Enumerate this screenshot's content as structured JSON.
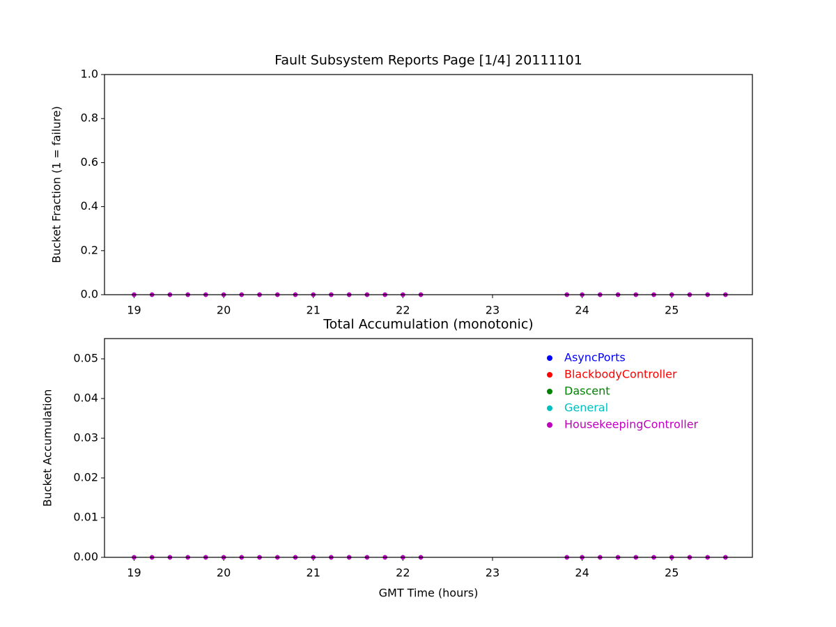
{
  "chart_data": [
    {
      "type": "scatter",
      "title": "Fault Subsystem Reports Page [1/4] 20111101",
      "y_label": "Bucket Fraction (1 = failure)",
      "x": [
        19.0,
        19.2,
        19.4,
        19.6,
        19.8,
        20.0,
        20.2,
        20.4,
        20.6,
        20.8,
        21.0,
        21.2,
        21.4,
        21.6,
        21.8,
        22.0,
        22.2,
        23.83,
        24.0,
        24.2,
        24.4,
        24.6,
        24.8,
        25.0,
        25.2,
        25.4,
        25.6
      ],
      "series": [
        {
          "color": "#0000ff",
          "values": [
            0,
            0,
            0,
            0,
            0,
            0,
            0,
            0,
            0,
            0,
            0,
            0,
            0,
            0,
            0,
            0,
            0,
            0,
            0,
            0,
            0,
            0,
            0,
            0,
            0,
            0,
            0
          ]
        },
        {
          "color": "#ff0000",
          "values": [
            0,
            0,
            0,
            0,
            0,
            0,
            0,
            0,
            0,
            0,
            0,
            0,
            0,
            0,
            0,
            0,
            0,
            0,
            0,
            0,
            0,
            0,
            0,
            0,
            0,
            0,
            0
          ]
        },
        {
          "color": "#008000",
          "values": [
            0,
            0,
            0,
            0,
            0,
            0,
            0,
            0,
            0,
            0,
            0,
            0,
            0,
            0,
            0,
            0,
            0,
            0,
            0,
            0,
            0,
            0,
            0,
            0,
            0,
            0,
            0
          ]
        },
        {
          "color": "#00bfbf",
          "values": [
            0,
            0,
            0,
            0,
            0,
            0,
            0,
            0,
            0,
            0,
            0,
            0,
            0,
            0,
            0,
            0,
            0,
            0,
            0,
            0,
            0,
            0,
            0,
            0,
            0,
            0,
            0
          ]
        },
        {
          "color": "#bf00bf",
          "values": [
            0,
            0,
            0,
            0,
            0,
            0,
            0,
            0,
            0,
            0,
            0,
            0,
            0,
            0,
            0,
            0,
            0,
            0,
            0,
            0,
            0,
            0,
            0,
            0,
            0,
            0,
            0
          ]
        }
      ],
      "xlim": [
        18.67,
        25.9
      ],
      "xticks": [
        19,
        20,
        21,
        22,
        23,
        24,
        25
      ],
      "ylim": [
        0,
        1
      ],
      "yticks": [
        {
          "value": 0,
          "label": "0.0"
        },
        0.2,
        0.4,
        0.6,
        0.8,
        {
          "value": 1,
          "label": "1.0"
        }
      ]
    },
    {
      "type": "scatter",
      "title": "Total Accumulation (monotonic)",
      "x_label": "GMT Time (hours)",
      "y_label": "Bucket Accumulation",
      "x": [
        19.0,
        19.2,
        19.4,
        19.6,
        19.8,
        20.0,
        20.2,
        20.4,
        20.6,
        20.8,
        21.0,
        21.2,
        21.4,
        21.6,
        21.8,
        22.0,
        22.2,
        23.83,
        24.0,
        24.2,
        24.4,
        24.6,
        24.8,
        25.0,
        25.2,
        25.4,
        25.6
      ],
      "series": [
        {
          "name": "AsyncPorts",
          "color": "#0000ff",
          "values": [
            0,
            0,
            0,
            0,
            0,
            0,
            0,
            0,
            0,
            0,
            0,
            0,
            0,
            0,
            0,
            0,
            0,
            0,
            0,
            0,
            0,
            0,
            0,
            0,
            0,
            0,
            0
          ]
        },
        {
          "name": "BlackbodyController",
          "color": "#ff0000",
          "values": [
            0,
            0,
            0,
            0,
            0,
            0,
            0,
            0,
            0,
            0,
            0,
            0,
            0,
            0,
            0,
            0,
            0,
            0,
            0,
            0,
            0,
            0,
            0,
            0,
            0,
            0,
            0
          ]
        },
        {
          "name": "Dascent",
          "color": "#008000",
          "values": [
            0,
            0,
            0,
            0,
            0,
            0,
            0,
            0,
            0,
            0,
            0,
            0,
            0,
            0,
            0,
            0,
            0,
            0,
            0,
            0,
            0,
            0,
            0,
            0,
            0,
            0,
            0
          ]
        },
        {
          "name": "General",
          "color": "#00bfbf",
          "values": [
            0,
            0,
            0,
            0,
            0,
            0,
            0,
            0,
            0,
            0,
            0,
            0,
            0,
            0,
            0,
            0,
            0,
            0,
            0,
            0,
            0,
            0,
            0,
            0,
            0,
            0,
            0
          ]
        },
        {
          "name": "HousekeepingController",
          "color": "#bf00bf",
          "values": [
            0,
            0,
            0,
            0,
            0,
            0,
            0,
            0,
            0,
            0,
            0,
            0,
            0,
            0,
            0,
            0,
            0,
            0,
            0,
            0,
            0,
            0,
            0,
            0,
            0,
            0,
            0
          ]
        }
      ],
      "xlim": [
        18.67,
        25.9
      ],
      "xticks": [
        19,
        20,
        21,
        22,
        23,
        24,
        25
      ],
      "ylim": [
        0,
        0.0551
      ],
      "yticks": [
        {
          "value": 0,
          "label": "0.00"
        },
        0.01,
        0.02,
        0.03,
        0.04,
        0.05
      ],
      "legend": "upper right"
    }
  ]
}
